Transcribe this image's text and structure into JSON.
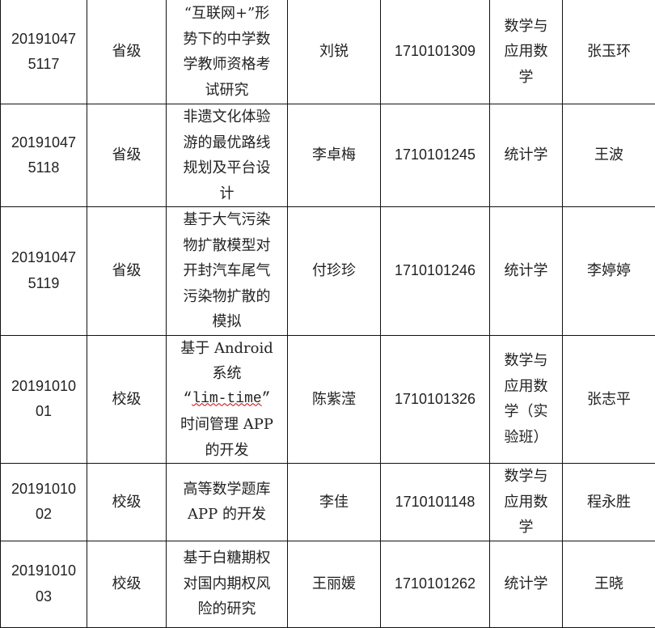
{
  "rows": [
    {
      "id_lines": [
        "20191047",
        "5117"
      ],
      "level": "省级",
      "title_lines": [
        "“互联网+”形",
        "势下的中学数",
        "学教师资格考",
        "试研究"
      ],
      "student": "刘锐",
      "student_id": "1710101309",
      "major_lines": [
        "数学与",
        "应用数",
        "学"
      ],
      "advisor": "张玉环"
    },
    {
      "id_lines": [
        "20191047",
        "5118"
      ],
      "level": "省级",
      "title_lines": [
        "非遗文化体验",
        "游的最优路线",
        "规划及平台设",
        "计"
      ],
      "student": "李卓梅",
      "student_id": "1710101245",
      "major_lines": [
        "统计学"
      ],
      "advisor": "王波"
    },
    {
      "id_lines": [
        "20191047",
        "5119"
      ],
      "level": "省级",
      "title_lines": [
        "基于大气污染",
        "物扩散模型对",
        "开封汽车尾气",
        "污染物扩散的",
        "模拟"
      ],
      "student": "付珍珍",
      "student_id": "1710101246",
      "major_lines": [
        "统计学"
      ],
      "advisor": "李婷婷"
    },
    {
      "id_lines": [
        "20191010",
        "01"
      ],
      "level": "校级",
      "title_lines": [
        "基于 Android",
        "系统",
        "“lim-time”",
        "时间管理 APP",
        "的开发"
      ],
      "student": "陈紫滢",
      "student_id": "1710101326",
      "major_lines": [
        "数学与",
        "应用数",
        "学（实",
        "验班）"
      ],
      "advisor": "张志平"
    },
    {
      "id_lines": [
        "20191010",
        "02"
      ],
      "level": "校级",
      "title_lines": [
        "高等数学题库",
        "APP 的开发"
      ],
      "student": "李佳",
      "student_id": "1710101148",
      "major_lines": [
        "数学与",
        "应用数",
        "学"
      ],
      "advisor": "程永胜"
    },
    {
      "id_lines": [
        "20191010",
        "03"
      ],
      "level": "校级",
      "title_lines": [
        "基于白糖期权",
        "对国内期权风",
        "险的研究"
      ],
      "student": "王丽媛",
      "student_id": "1710101262",
      "major_lines": [
        "统计学"
      ],
      "advisor": "王晓"
    }
  ]
}
